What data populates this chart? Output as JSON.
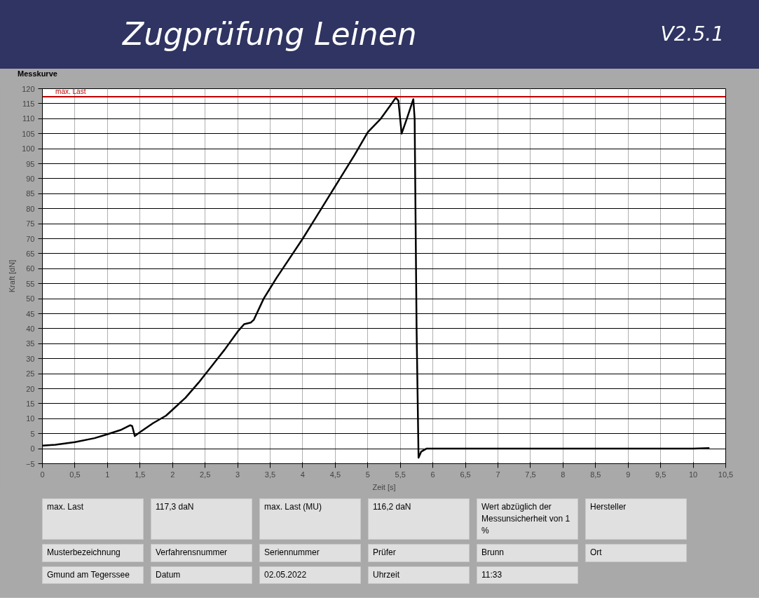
{
  "chart_data": {
    "type": "line",
    "title": "Zugprüfung Leinen",
    "subtitle": "V2.5.1",
    "xlabel": "Zeit [s]",
    "ylabel": "Kraft [dN]",
    "annotations": [
      "Messkurve",
      "max. Last",
      "117,3 daN",
      "max. Last (MU)",
      "116,2 daN",
      "Wert abzüglich der Messunsicherheit von 1 %",
      "Hersteller",
      "Musterbezeichnung",
      "Verfahrensnummer",
      "Seriennummer",
      "Prüfer",
      "Brunn",
      "Ort",
      "Gmund am Tegerssee",
      "Datum",
      "02.05.2022",
      "Uhrzeit",
      "11:33"
    ],
    "series": [
      {
        "color": "#000000",
        "x": [
          0,
          0.2,
          0.5,
          0.8,
          1.0,
          1.2,
          1.35,
          1.38,
          1.42,
          1.5,
          1.7,
          1.9,
          2.0,
          2.2,
          2.4,
          2.6,
          2.8,
          3.0,
          3.1,
          3.2,
          3.25,
          3.4,
          3.6,
          3.8,
          4.0,
          4.2,
          4.4,
          4.6,
          4.8,
          5.0,
          5.2,
          5.35,
          5.43,
          5.47,
          5.52,
          5.6,
          5.7,
          5.72,
          5.75,
          5.78,
          5.82,
          5.9,
          6.5,
          7,
          8,
          9,
          10,
          10.25
        ],
        "values": [
          1,
          1.3,
          2.2,
          3.5,
          4.8,
          6.2,
          7.8,
          7.5,
          4.2,
          5.5,
          8.5,
          11,
          13,
          17,
          22,
          27.5,
          33,
          39,
          41.5,
          42,
          43,
          50,
          57,
          63.5,
          70,
          77,
          84,
          91,
          98,
          105.5,
          110,
          114.5,
          117,
          116,
          105,
          110,
          116.5,
          110,
          40,
          -3,
          -1,
          0,
          0,
          0,
          0,
          0,
          0,
          0.2
        ]
      }
    ],
    "ref_lines": [
      {
        "axis": "y",
        "value": 117.3,
        "label": "max. Last",
        "color": "#c00000"
      }
    ],
    "xlim": [
      0,
      10.5
    ],
    "xticks": [
      0,
      {
        "value": 0.5,
        "label": "0,5"
      },
      1,
      {
        "value": 1.5,
        "label": "1,5"
      },
      2,
      {
        "value": 2.5,
        "label": "2,5"
      },
      3,
      {
        "value": 3.5,
        "label": "3,5"
      },
      4,
      {
        "value": 4.5,
        "label": "4,5"
      },
      5,
      {
        "value": 5.5,
        "label": "5,5"
      },
      6,
      {
        "value": 6.5,
        "label": "6,5"
      },
      7,
      {
        "value": 7.5,
        "label": "7,5"
      },
      8,
      {
        "value": 8.5,
        "label": "8,5"
      },
      9,
      {
        "value": 9.5,
        "label": "9,5"
      },
      10,
      {
        "value": 10.5,
        "label": "10,5"
      }
    ],
    "ylim": [
      -5,
      120
    ],
    "yticks": [
      -5,
      0,
      5,
      10,
      15,
      20,
      25,
      30,
      35,
      40,
      45,
      50,
      55,
      60,
      65,
      70,
      75,
      80,
      85,
      90,
      95,
      100,
      105,
      110,
      115,
      120
    ],
    "grid": true,
    "marker": "none",
    "line_style": "solid"
  }
}
